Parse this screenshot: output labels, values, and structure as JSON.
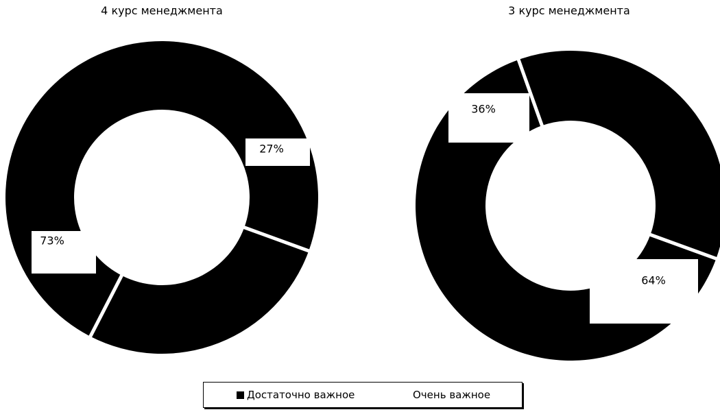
{
  "chart_data": [
    {
      "type": "pie",
      "title": "4 курс менеджмента",
      "series": [
        {
          "name": "Достаточно важное",
          "value": 73,
          "label": "73%"
        },
        {
          "name": "Очень важное",
          "value": 27,
          "label": "27%"
        }
      ]
    },
    {
      "type": "pie",
      "title": "3 курс менеджмента",
      "series": [
        {
          "name": "Достаточно важное",
          "value": 64,
          "label": "64%"
        },
        {
          "name": "Очень важное",
          "value": 36,
          "label": "36%"
        }
      ]
    }
  ],
  "legend": {
    "placement": "bottom",
    "items": [
      {
        "label": "Достаточно важное",
        "color": "#000000"
      },
      {
        "label": "Очень важное",
        "color": "#ffffff"
      }
    ]
  },
  "colors": {
    "slice": "#000000",
    "separator": "#ffffff",
    "label_box": "#ffffff"
  }
}
